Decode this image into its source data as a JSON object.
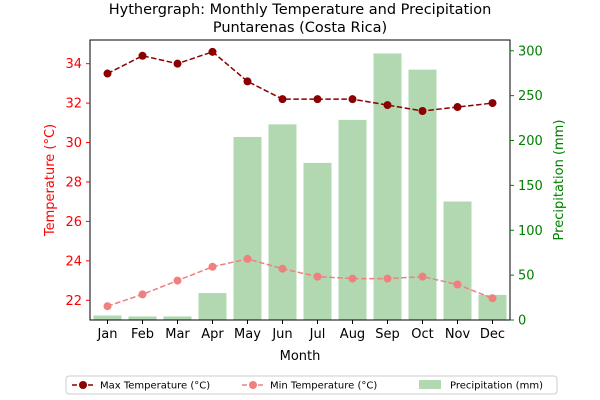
{
  "chart_data": {
    "type": "bar",
    "title": "Hythergraph: Monthly Temperature and Precipitation",
    "subtitle": "Puntarenas (Costa Rica)",
    "xlabel": "Month",
    "ylabel_left": "Temperature (°C)",
    "ylabel_right": "Precipitation (mm)",
    "categories": [
      "Jan",
      "Feb",
      "Mar",
      "Apr",
      "May",
      "Jun",
      "Jul",
      "Aug",
      "Sep",
      "Oct",
      "Nov",
      "Dec"
    ],
    "ylim_left": [
      21.0,
      35.2
    ],
    "ylim_right": [
      0,
      312
    ],
    "yticks_left": [
      22,
      24,
      26,
      28,
      30,
      32,
      34
    ],
    "yticks_right": [
      0,
      50,
      100,
      150,
      200,
      250,
      300
    ],
    "grid": false,
    "legend_position": "bottom",
    "colors": {
      "max_temp": "#8b0000",
      "min_temp": "#f08080",
      "precip": "#b1d8b1",
      "left_axis": "#ff0000",
      "right_axis": "#008000"
    },
    "series": [
      {
        "name": "Max Temperature (°C)",
        "type": "line",
        "axis": "left",
        "style": "dashed-marker",
        "values": [
          33.5,
          34.4,
          34.0,
          34.6,
          33.1,
          32.2,
          32.2,
          32.2,
          31.9,
          31.6,
          31.8,
          32.0
        ]
      },
      {
        "name": "Min Temperature (°C)",
        "type": "line",
        "axis": "left",
        "style": "dashed-marker",
        "values": [
          21.7,
          22.3,
          23.0,
          23.7,
          24.1,
          23.6,
          23.2,
          23.1,
          23.1,
          23.2,
          22.8,
          22.1
        ]
      },
      {
        "name": "Precipitation (mm)",
        "type": "bar",
        "axis": "right",
        "values": [
          5,
          4,
          4,
          30,
          204,
          218,
          175,
          223,
          297,
          279,
          132,
          28
        ]
      }
    ]
  }
}
